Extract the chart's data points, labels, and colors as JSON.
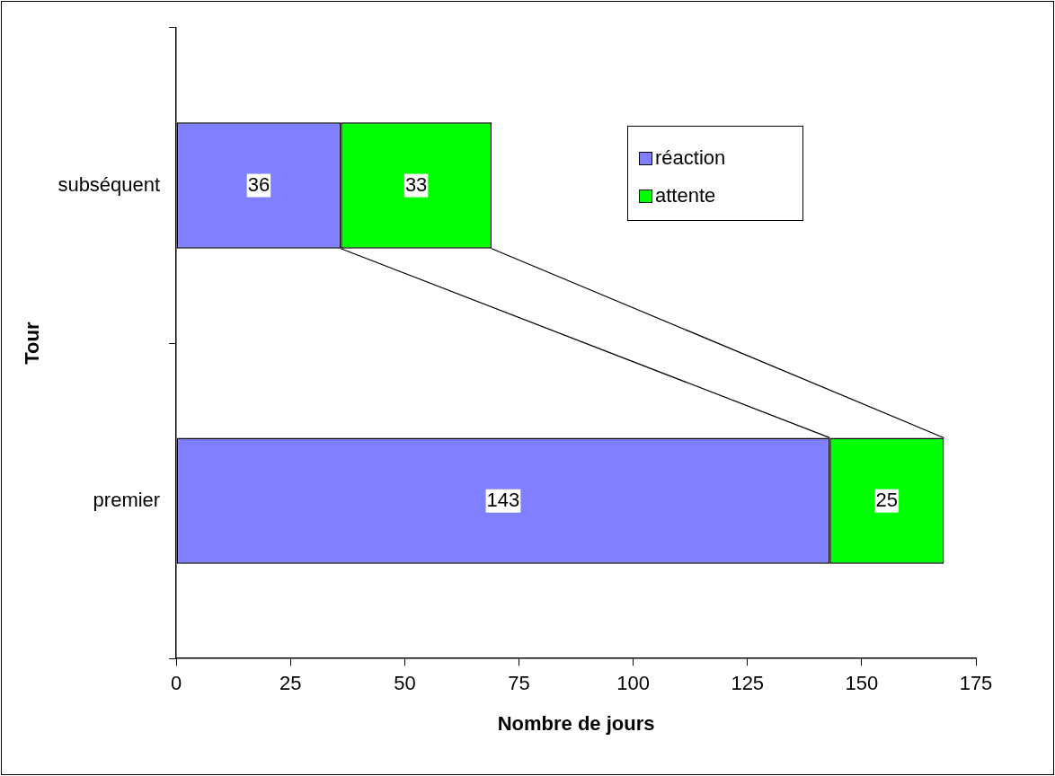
{
  "chart_data": {
    "type": "bar",
    "orientation": "horizontal",
    "stacked": true,
    "xlabel": "Nombre de jours",
    "ylabel": "Tour",
    "categories": [
      "subséquent",
      "premier"
    ],
    "series": [
      {
        "name": "réaction",
        "color": "#8080ff",
        "values": [
          36,
          143
        ]
      },
      {
        "name": "attente",
        "color": "#00ff00",
        "values": [
          33,
          25
        ]
      }
    ],
    "xlim": [
      0,
      175
    ],
    "xticks": [
      0,
      25,
      50,
      75,
      100,
      125,
      150,
      175
    ],
    "grid": false,
    "legend": "top right",
    "data_labels": true
  }
}
